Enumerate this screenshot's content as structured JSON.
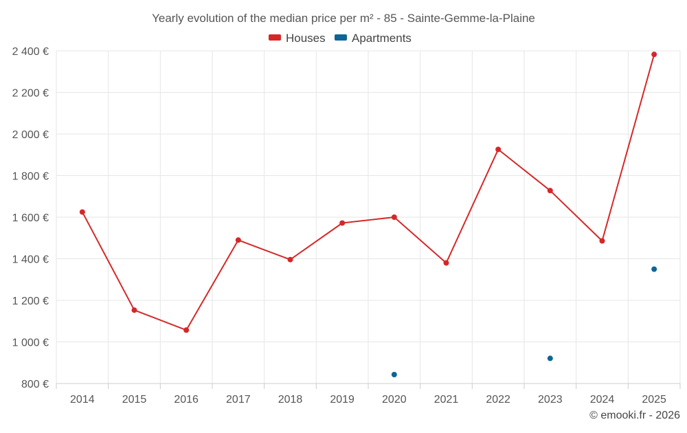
{
  "chart_data": {
    "type": "line",
    "title": "Yearly evolution of the median price per m² - 85 - Sainte-Gemme-la-Plaine",
    "xlabel": "",
    "ylabel": "",
    "categories": [
      "2014",
      "2015",
      "2016",
      "2017",
      "2018",
      "2019",
      "2020",
      "2021",
      "2022",
      "2023",
      "2024",
      "2025"
    ],
    "ylim": [
      800,
      2400
    ],
    "yticks": [
      800,
      1000,
      1200,
      1400,
      1600,
      1800,
      2000,
      2200,
      2400
    ],
    "ytick_labels": [
      "800 €",
      "1 000 €",
      "1 200 €",
      "1 400 €",
      "1 600 €",
      "1 800 €",
      "2 000 €",
      "2 200 €",
      "2 400 €"
    ],
    "grid": true,
    "legend_position": "top-center",
    "series": [
      {
        "name": "Houses",
        "color": "#d62728",
        "style": "line-markers",
        "values": [
          1625,
          1153,
          1057,
          1490,
          1396,
          1572,
          1600,
          1380,
          1926,
          1728,
          1486,
          2383
        ]
      },
      {
        "name": "Apartments",
        "color": "#0e6596",
        "style": "markers",
        "values": [
          null,
          null,
          null,
          null,
          null,
          null,
          843,
          null,
          null,
          921,
          null,
          1350
        ]
      }
    ],
    "credit": "© emooki.fr - 2026"
  }
}
